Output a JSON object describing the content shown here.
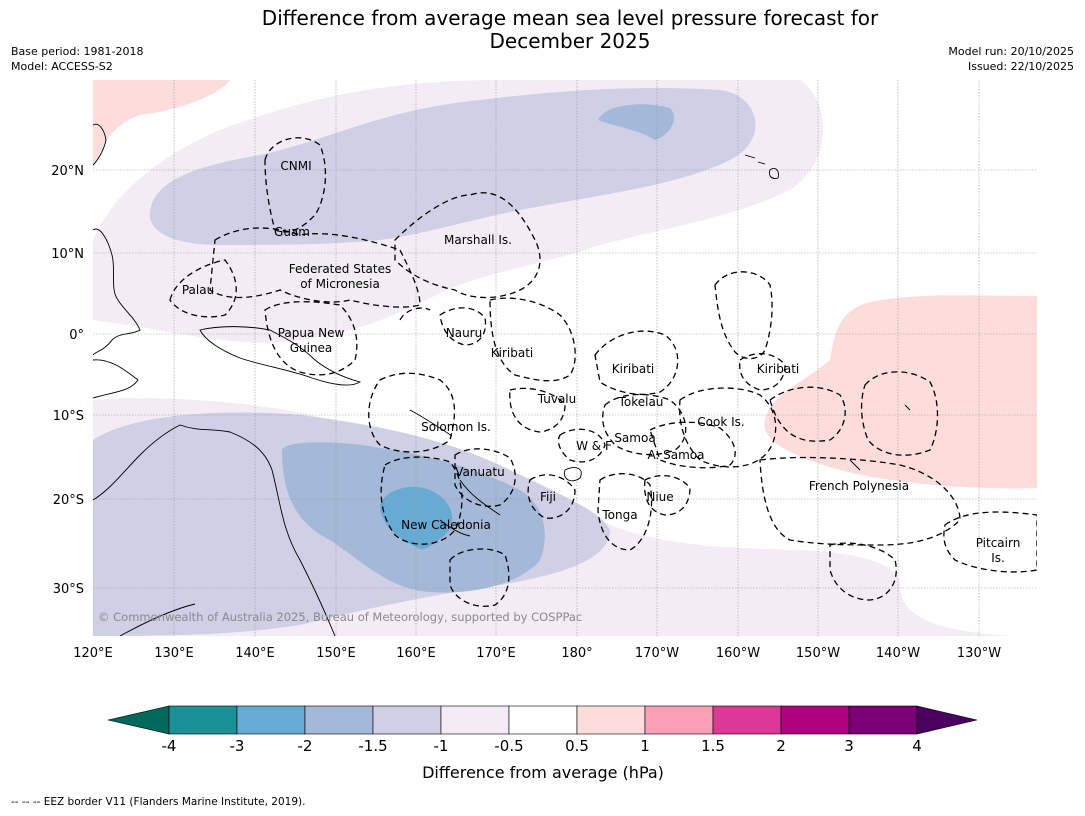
{
  "title_line1": "Difference from average mean sea level pressure forecast for",
  "title_line2": "December 2025",
  "base_period": "Base period: 1981-2018",
  "model": "Model: ACCESS-S2",
  "model_run": "Model run: 20/10/2025",
  "issued": "Issued: 22/10/2025",
  "copyright": "© Commonwealth of Australia 2025, Bureau of Meteorology, supported by COSPPac",
  "lon_labels": [
    "120°E",
    "130°E",
    "140°E",
    "150°E",
    "160°E",
    "170°E",
    "180°",
    "170°W",
    "160°W",
    "150°W",
    "140°W",
    "130°W"
  ],
  "lat_labels": [
    "20°N",
    "10°N",
    "0°",
    "10°S",
    "20°S",
    "30°S"
  ],
  "regions": {
    "cnmi": "CNMI",
    "guam": "Guam",
    "marshall": "Marshall Is.",
    "fsm1": "Federated States",
    "fsm2": "of Micronesia",
    "palau": "Palau",
    "png1": "Papua New",
    "png2": "Guinea",
    "nauru": "Nauru",
    "kiribati_w": "Kiribati",
    "kiribati_c": "Kiribati",
    "kiribati_e": "Kiribati",
    "tuvalu": "Tuvalu",
    "tokelau": "Tokelau",
    "cook": "Cook Is.",
    "solomon": "Solomon Is.",
    "samoa": "Samoa",
    "wf": "W & F",
    "asamoa": "A. Samoa",
    "vanuatu": "Vanuatu",
    "fiji": "Fiji",
    "niue": "Niue",
    "tonga": "Tonga",
    "newcal": "New Caledonia",
    "frpoly": "French Polynesia",
    "pitcairn1": "Pitcairn",
    "pitcairn2": "Is."
  },
  "colorbar": {
    "label": "Difference from average (hPa)",
    "ticks": [
      "-4",
      "-3",
      "-2",
      "-1.5",
      "-1",
      "-0.5",
      "0.5",
      "1",
      "1.5",
      "2",
      "3",
      "4"
    ],
    "colors": [
      "#1a9099",
      "#67aad3",
      "#a4b8d8",
      "#cfcfe6",
      "#f3ecf5",
      "#ffffff",
      "#fddcdc",
      "#f9a0b6",
      "#dc3895",
      "#ad017e",
      "#7b0077"
    ],
    "under_color": "#00695c",
    "over_color": "#4b0060"
  },
  "footer": "--  --  -- EEZ border V11 (Flanders Marine Institute, 2019)."
}
